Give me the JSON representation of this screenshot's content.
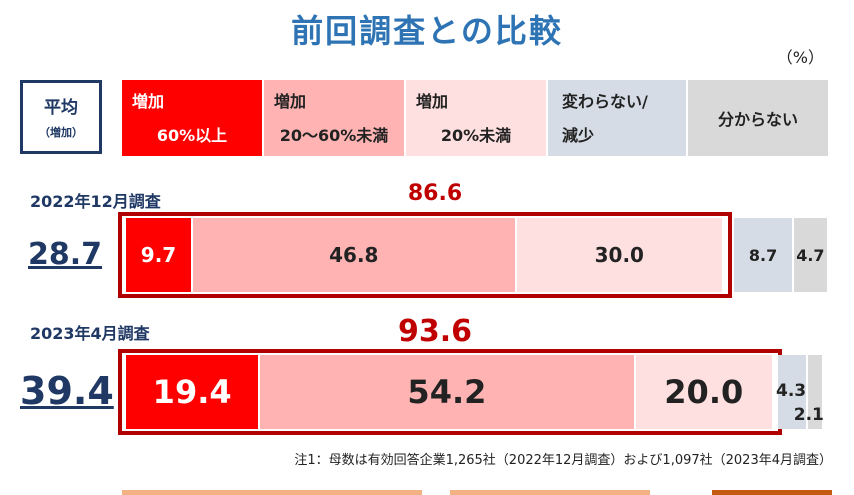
{
  "title": "前回調査との比較",
  "unit": "（%）",
  "avg_box": {
    "line1": "平均",
    "line2": "（増加）"
  },
  "legend": [
    {
      "line1": "増加",
      "line2": "60%以上",
      "color": "#ff0000",
      "text_color": "#ffffff"
    },
    {
      "line1": "増加",
      "line2": "20～60%未満",
      "color": "#ffb3b3",
      "text_color": "#222222"
    },
    {
      "line1": "増加",
      "line2": "20%未満",
      "color": "#ffe0e0",
      "text_color": "#222222"
    },
    {
      "line1": "変わらない/",
      "line2": "減少",
      "color": "#d6dce5",
      "text_color": "#222222"
    },
    {
      "line1": "分からない",
      "line2": "",
      "color": "#d9d9d9",
      "text_color": "#222222"
    }
  ],
  "chart_data": {
    "type": "bar",
    "orientation": "horizontal-stacked",
    "categories": [
      "2022年12月調査",
      "2023年4月調査"
    ],
    "series": [
      {
        "name": "増加 60%以上",
        "values": [
          9.7,
          19.4
        ]
      },
      {
        "name": "増加 20～60%未満",
        "values": [
          46.8,
          54.2
        ]
      },
      {
        "name": "増加 20%未満",
        "values": [
          30.0,
          20.0
        ]
      },
      {
        "name": "変わらない/減少",
        "values": [
          8.7,
          4.3
        ]
      },
      {
        "name": "分からない",
        "values": [
          4.7,
          2.1
        ]
      }
    ],
    "increase_total_labels": [
      "86.6",
      "93.6"
    ],
    "average_labels": [
      "28.7",
      "39.4"
    ],
    "value_labels": [
      [
        "9.7",
        "46.8",
        "30.0",
        "8.7",
        "4.7"
      ],
      [
        "19.4",
        "54.2",
        "20.0",
        "4.3",
        "2.1"
      ]
    ]
  },
  "note": "注1：母数は有効回答企業1,265社（2022年12月調査）および1,097社（2023年4月調査）"
}
